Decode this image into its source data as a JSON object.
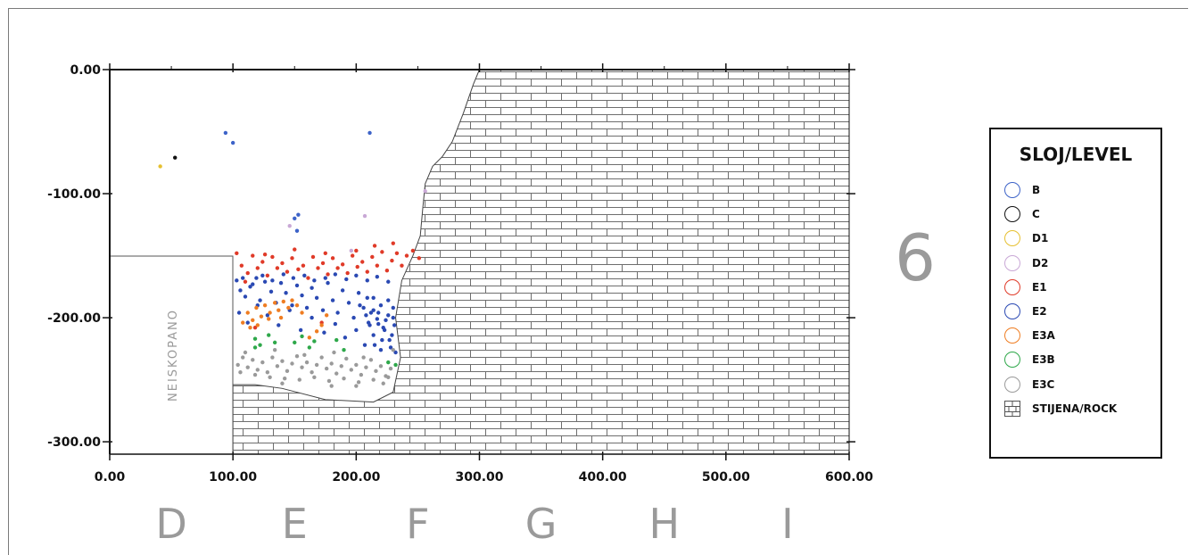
{
  "chart_data": {
    "type": "scatter",
    "x_ticks": [
      "0.00",
      "100.00",
      "200.00",
      "300.00",
      "400.00",
      "500.00",
      "600.00"
    ],
    "y_ticks": [
      "0.00",
      "-100.00",
      "-200.00",
      "-300.00"
    ],
    "xlim": [
      0,
      600
    ],
    "ylim": [
      -310,
      0
    ],
    "unexcavated_label": "NEISKOPANO",
    "zone_labels": [
      "D",
      "E",
      "F",
      "G",
      "H",
      "I"
    ],
    "section_number": "6",
    "legend": {
      "title": "SLOJ/LEVEL",
      "items": [
        {
          "label": "B",
          "color": "#3d63c8"
        },
        {
          "label": "C",
          "color": "#111111"
        },
        {
          "label": "D1",
          "color": "#e6c030"
        },
        {
          "label": "D2",
          "color": "#c9a8d6"
        },
        {
          "label": "E1",
          "color": "#e03a28"
        },
        {
          "label": "E2",
          "color": "#2a49b3"
        },
        {
          "label": "E3A",
          "color": "#ef7d22"
        },
        {
          "label": "E3B",
          "color": "#2ea84a"
        },
        {
          "label": "E3C",
          "color": "#9a9a9a"
        }
      ],
      "rock_label": "STIJENA/ROCK"
    },
    "rock_boundary": [
      [
        300,
        0
      ],
      [
        295,
        -12
      ],
      [
        287,
        -35
      ],
      [
        278,
        -58
      ],
      [
        270,
        -70
      ],
      [
        262,
        -78
      ],
      [
        256,
        -92
      ],
      [
        254,
        -112
      ],
      [
        252,
        -134
      ],
      [
        246,
        -150
      ],
      [
        237,
        -170
      ],
      [
        232,
        -200
      ],
      [
        236,
        -232
      ],
      [
        230,
        -260
      ],
      [
        214,
        -268
      ],
      [
        175,
        -266
      ],
      [
        140,
        -257
      ],
      [
        118,
        -254
      ],
      [
        100,
        -254
      ]
    ],
    "series": [
      {
        "level": "B",
        "color": "#3d63c8",
        "points": [
          [
            94,
            -51
          ],
          [
            100,
            -59
          ],
          [
            211,
            -51
          ],
          [
            150,
            -120
          ],
          [
            153,
            -117
          ],
          [
            152,
            -130
          ]
        ]
      },
      {
        "level": "D1",
        "color": "#e6c030",
        "points": [
          [
            41,
            -78
          ]
        ]
      },
      {
        "level": "C",
        "color": "#111111",
        "points": [
          [
            53,
            -71
          ]
        ]
      },
      {
        "level": "D2",
        "color": "#c9a8d6",
        "points": [
          [
            146,
            -126
          ],
          [
            207,
            -118
          ],
          [
            196,
            -146
          ],
          [
            256,
            -98
          ]
        ]
      },
      {
        "level": "E1",
        "color": "#e03a28",
        "points": [
          [
            103,
            -148
          ],
          [
            107,
            -158
          ],
          [
            112,
            -164
          ],
          [
            116,
            -150
          ],
          [
            120,
            -160
          ],
          [
            124,
            -155
          ],
          [
            128,
            -166
          ],
          [
            132,
            -151
          ],
          [
            136,
            -160
          ],
          [
            140,
            -156
          ],
          [
            144,
            -163
          ],
          [
            148,
            -152
          ],
          [
            153,
            -161
          ],
          [
            157,
            -158
          ],
          [
            161,
            -168
          ],
          [
            165,
            -151
          ],
          [
            169,
            -160
          ],
          [
            173,
            -156
          ],
          [
            177,
            -165
          ],
          [
            181,
            -152
          ],
          [
            185,
            -160
          ],
          [
            189,
            -157
          ],
          [
            193,
            -164
          ],
          [
            197,
            -150
          ],
          [
            201,
            -159
          ],
          [
            205,
            -155
          ],
          [
            209,
            -163
          ],
          [
            213,
            -151
          ],
          [
            217,
            -158
          ],
          [
            221,
            -147
          ],
          [
            225,
            -162
          ],
          [
            229,
            -154
          ],
          [
            233,
            -148
          ],
          [
            237,
            -158
          ],
          [
            241,
            -150
          ],
          [
            246,
            -146
          ],
          [
            251,
            -152
          ],
          [
            110,
            -171
          ],
          [
            126,
            -149
          ],
          [
            150,
            -145
          ],
          [
            175,
            -148
          ],
          [
            200,
            -146
          ],
          [
            215,
            -142
          ],
          [
            230,
            -140
          ],
          [
            118,
            -208
          ],
          [
            172,
            -204
          ]
        ]
      },
      {
        "level": "E2",
        "color": "#2a49b3",
        "points": [
          [
            103,
            -170
          ],
          [
            106,
            -178
          ],
          [
            110,
            -183
          ],
          [
            114,
            -175
          ],
          [
            119,
            -168
          ],
          [
            122,
            -186
          ],
          [
            126,
            -171
          ],
          [
            131,
            -179
          ],
          [
            135,
            -188
          ],
          [
            139,
            -172
          ],
          [
            143,
            -180
          ],
          [
            148,
            -190
          ],
          [
            152,
            -174
          ],
          [
            156,
            -182
          ],
          [
            160,
            -192
          ],
          [
            164,
            -176
          ],
          [
            168,
            -184
          ],
          [
            173,
            -194
          ],
          [
            177,
            -172
          ],
          [
            181,
            -186
          ],
          [
            185,
            -196
          ],
          [
            189,
            -178
          ],
          [
            194,
            -188
          ],
          [
            198,
            -200
          ],
          [
            202,
            -180
          ],
          [
            206,
            -192
          ],
          [
            210,
            -204
          ],
          [
            214,
            -184
          ],
          [
            218,
            -196
          ],
          [
            222,
            -208
          ],
          [
            226,
            -186
          ],
          [
            230,
            -200
          ],
          [
            105,
            -196
          ],
          [
            112,
            -204
          ],
          [
            120,
            -190
          ],
          [
            128,
            -198
          ],
          [
            137,
            -206
          ],
          [
            146,
            -194
          ],
          [
            155,
            -210
          ],
          [
            164,
            -200
          ],
          [
            174,
            -212
          ],
          [
            183,
            -205
          ],
          [
            191,
            -216
          ],
          [
            200,
            -210
          ],
          [
            207,
            -222
          ],
          [
            214,
            -214
          ],
          [
            220,
            -226
          ],
          [
            227,
            -218
          ],
          [
            232,
            -228
          ],
          [
            203,
            -190
          ],
          [
            208,
            -198
          ],
          [
            211,
            -206
          ],
          [
            214,
            -194
          ],
          [
            217,
            -201
          ],
          [
            220,
            -190
          ],
          [
            223,
            -210
          ],
          [
            226,
            -198
          ],
          [
            229,
            -214
          ],
          [
            231,
            -206
          ],
          [
            209,
            -184
          ],
          [
            215,
            -222
          ],
          [
            221,
            -218
          ],
          [
            228,
            -224
          ],
          [
            212,
            -196
          ],
          [
            218,
            -205
          ],
          [
            224,
            -202
          ],
          [
            230,
            -192
          ],
          [
            108,
            -168
          ],
          [
            116,
            -173
          ],
          [
            124,
            -166
          ],
          [
            132,
            -170
          ],
          [
            141,
            -165
          ],
          [
            149,
            -168
          ],
          [
            158,
            -166
          ],
          [
            166,
            -170
          ],
          [
            175,
            -168
          ],
          [
            183,
            -165
          ],
          [
            192,
            -169
          ],
          [
            200,
            -166
          ],
          [
            209,
            -170
          ],
          [
            217,
            -167
          ],
          [
            226,
            -171
          ]
        ]
      },
      {
        "level": "E3A",
        "color": "#ef7d22",
        "points": [
          [
            108,
            -204
          ],
          [
            112,
            -196
          ],
          [
            116,
            -202
          ],
          [
            119,
            -192
          ],
          [
            123,
            -199
          ],
          [
            126,
            -190
          ],
          [
            130,
            -196
          ],
          [
            134,
            -188
          ],
          [
            137,
            -194
          ],
          [
            141,
            -187
          ],
          [
            145,
            -192
          ],
          [
            148,
            -186
          ],
          [
            152,
            -190
          ],
          [
            156,
            -196
          ],
          [
            114,
            -208
          ],
          [
            120,
            -206
          ],
          [
            162,
            -216
          ],
          [
            168,
            -211
          ],
          [
            172,
            -206
          ],
          [
            176,
            -198
          ],
          [
            129,
            -201
          ],
          [
            139,
            -200
          ]
        ]
      },
      {
        "level": "E3B",
        "color": "#2ea84a",
        "points": [
          [
            118,
            -217
          ],
          [
            122,
            -222
          ],
          [
            129,
            -214
          ],
          [
            134,
            -220
          ],
          [
            150,
            -220
          ],
          [
            156,
            -215
          ],
          [
            162,
            -224
          ],
          [
            166,
            -219
          ],
          [
            184,
            -218
          ],
          [
            190,
            -226
          ],
          [
            118,
            -224
          ],
          [
            226,
            -236
          ],
          [
            232,
            -238
          ]
        ]
      },
      {
        "level": "E3C",
        "color": "#9a9a9a",
        "points": [
          [
            104,
            -238
          ],
          [
            108,
            -232
          ],
          [
            112,
            -240
          ],
          [
            116,
            -234
          ],
          [
            120,
            -242
          ],
          [
            124,
            -236
          ],
          [
            128,
            -244
          ],
          [
            132,
            -232
          ],
          [
            136,
            -239
          ],
          [
            140,
            -235
          ],
          [
            144,
            -243
          ],
          [
            148,
            -237
          ],
          [
            152,
            -231
          ],
          [
            156,
            -240
          ],
          [
            160,
            -236
          ],
          [
            164,
            -244
          ],
          [
            168,
            -238
          ],
          [
            172,
            -232
          ],
          [
            176,
            -241
          ],
          [
            180,
            -237
          ],
          [
            184,
            -245
          ],
          [
            188,
            -239
          ],
          [
            192,
            -233
          ],
          [
            196,
            -242
          ],
          [
            200,
            -238
          ],
          [
            204,
            -246
          ],
          [
            208,
            -240
          ],
          [
            212,
            -234
          ],
          [
            216,
            -243
          ],
          [
            220,
            -239
          ],
          [
            224,
            -247
          ],
          [
            228,
            -241
          ],
          [
            106,
            -244
          ],
          [
            118,
            -246
          ],
          [
            130,
            -248
          ],
          [
            142,
            -249
          ],
          [
            154,
            -250
          ],
          [
            166,
            -248
          ],
          [
            178,
            -251
          ],
          [
            190,
            -249
          ],
          [
            202,
            -252
          ],
          [
            214,
            -250
          ],
          [
            226,
            -248
          ],
          [
            110,
            -228
          ],
          [
            134,
            -226
          ],
          [
            158,
            -230
          ],
          [
            182,
            -228
          ],
          [
            206,
            -232
          ],
          [
            230,
            -226
          ],
          [
            140,
            -253
          ],
          [
            180,
            -255
          ],
          [
            200,
            -255
          ],
          [
            222,
            -253
          ]
        ]
      }
    ]
  }
}
